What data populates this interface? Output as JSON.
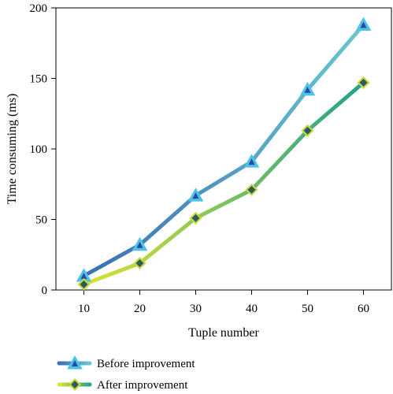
{
  "chart_data": {
    "type": "line",
    "x": [
      10,
      20,
      30,
      40,
      50,
      60
    ],
    "series": [
      {
        "name": "Before improvement",
        "values": [
          10,
          32,
          67,
          91,
          142,
          188
        ],
        "marker": "triangle",
        "color_start": "#3a6fb5",
        "color_end": "#6bc6cf",
        "marker_fill": "#2b4aa0",
        "marker_edge": "#4ec3e8"
      },
      {
        "name": "After improvement",
        "values": [
          4,
          19,
          51,
          71,
          113,
          147
        ],
        "marker": "diamond",
        "color_start": "#dde234",
        "color_end": "#22a28a",
        "marker_fill": "#2b5a63",
        "marker_edge": "#c7d93a"
      }
    ],
    "xlabel": "Tuple number",
    "ylabel": "Time consuming (ms)",
    "xlim": [
      5,
      65
    ],
    "ylim": [
      0,
      200
    ],
    "xticks": [
      "10",
      "20",
      "30",
      "40",
      "50",
      "60"
    ],
    "yticks": [
      "0",
      "50",
      "100",
      "150",
      "200"
    ],
    "grid": false,
    "legend_position": "bottom-left"
  }
}
